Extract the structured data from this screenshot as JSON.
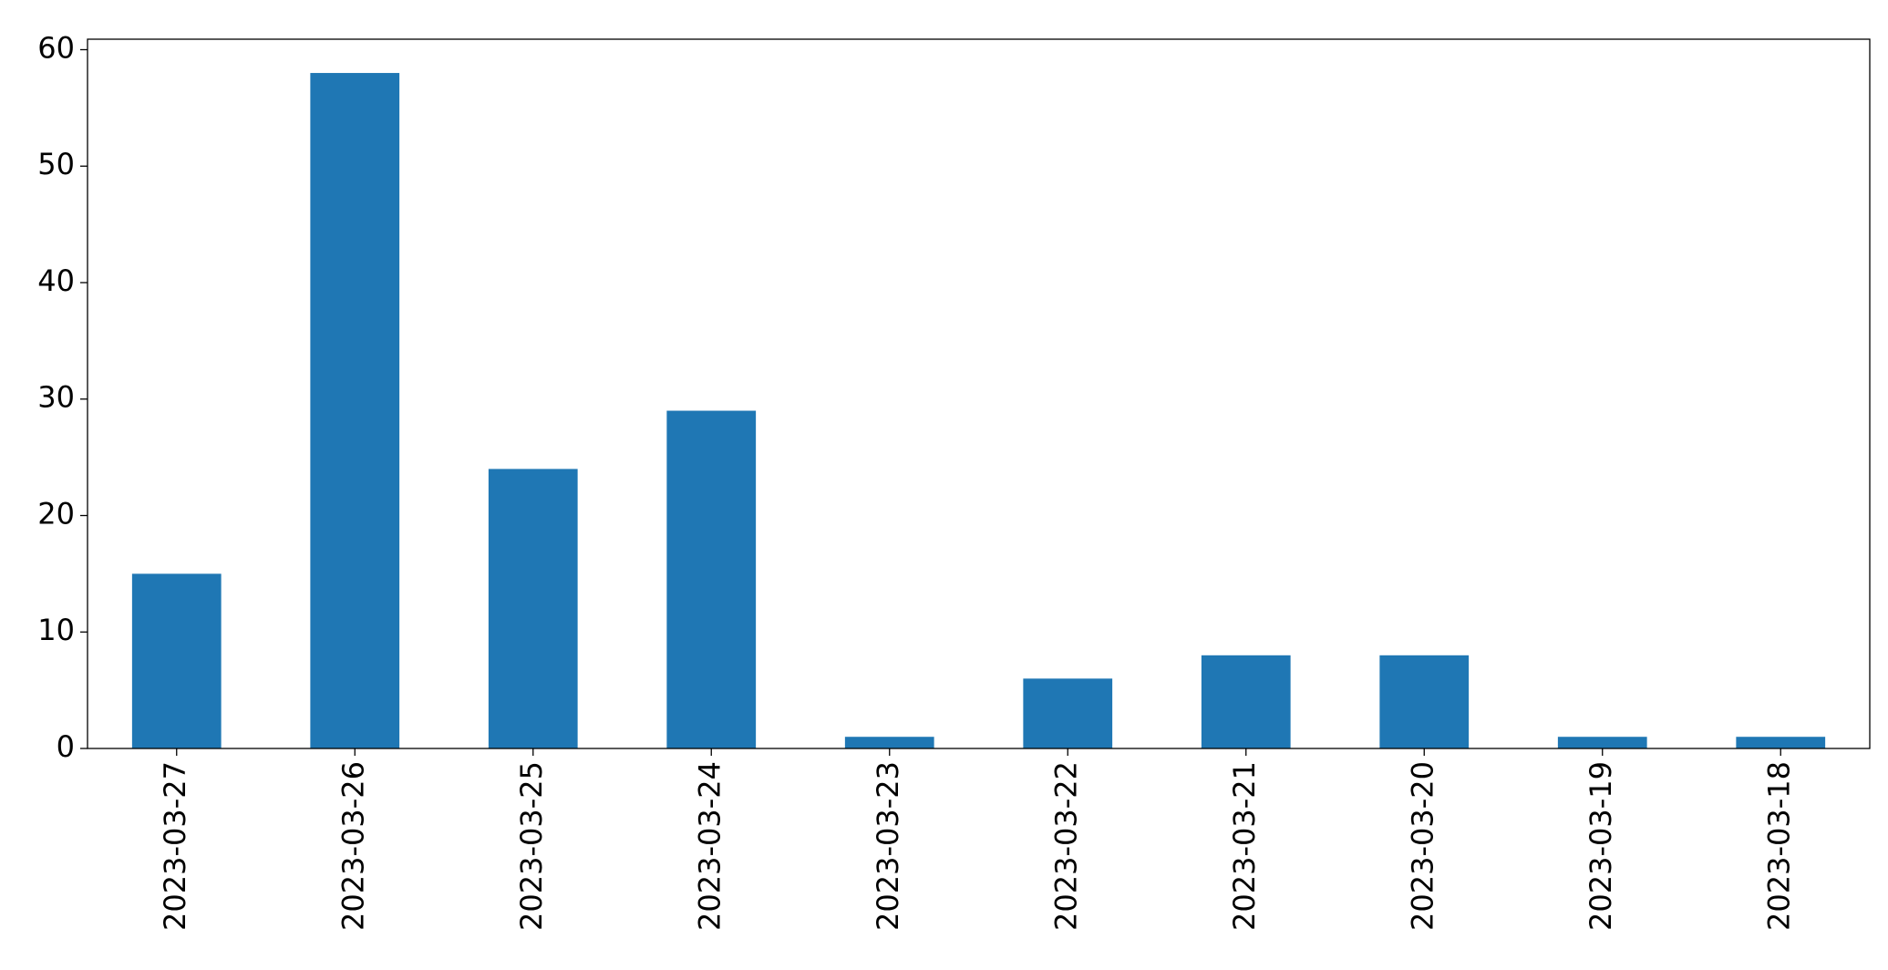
{
  "chart_data": {
    "type": "bar",
    "categories": [
      "2023-03-27",
      "2023-03-26",
      "2023-03-25",
      "2023-03-24",
      "2023-03-23",
      "2023-03-22",
      "2023-03-21",
      "2023-03-20",
      "2023-03-19",
      "2023-03-18"
    ],
    "values": [
      15,
      58,
      24,
      29,
      1,
      6,
      8,
      8,
      1,
      1
    ],
    "color": "#1f77b4",
    "ylim": [
      0,
      60.9
    ],
    "yticks": [
      0,
      10,
      20,
      30,
      40,
      50,
      60
    ],
    "grid": false
  }
}
